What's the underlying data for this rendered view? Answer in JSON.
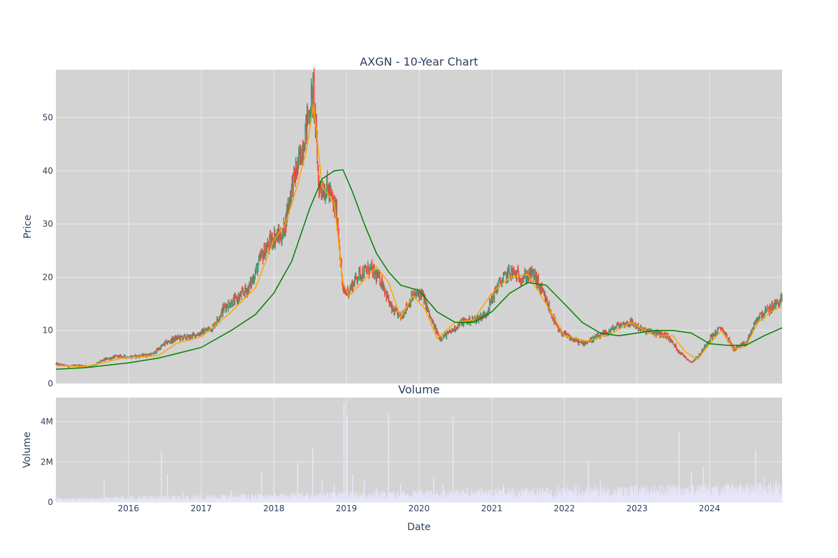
{
  "chart_data": [
    {
      "type": "line",
      "title": "AXGN - 10-Year Chart",
      "xlabel": "",
      "ylabel": "Price",
      "ylim": [
        0,
        59
      ],
      "yticks": [
        0,
        10,
        20,
        30,
        40,
        50
      ],
      "xlim": [
        "2015-01-01",
        "2024-12-31"
      ],
      "xticks": [
        "2016",
        "2017",
        "2018",
        "2019",
        "2020",
        "2021",
        "2022",
        "2023",
        "2024"
      ],
      "grid": true,
      "background": "#d3d3d3",
      "series": [
        {
          "kind": "candlestick",
          "up_color": "#3d9970",
          "down_color": "#ff4136",
          "x": [
            "2015-01-01",
            "2015-03-01",
            "2015-05-01",
            "2015-07-01",
            "2015-09-01",
            "2015-11-01",
            "2016-01-01",
            "2016-03-01",
            "2016-05-01",
            "2016-07-01",
            "2016-09-01",
            "2016-11-01",
            "2017-01-01",
            "2017-03-01",
            "2017-05-01",
            "2017-07-01",
            "2017-09-01",
            "2017-11-01",
            "2018-01-01",
            "2018-02-15",
            "2018-04-01",
            "2018-05-15",
            "2018-07-01",
            "2018-07-20",
            "2018-08-15",
            "2018-10-01",
            "2018-11-15",
            "2018-12-15",
            "2019-01-15",
            "2019-03-01",
            "2019-05-01",
            "2019-07-01",
            "2019-08-15",
            "2019-10-01",
            "2019-12-01",
            "2020-01-15",
            "2020-03-01",
            "2020-04-15",
            "2020-06-01",
            "2020-08-01",
            "2020-10-01",
            "2020-12-01",
            "2021-02-01",
            "2021-04-01",
            "2021-06-01",
            "2021-08-01",
            "2021-10-01",
            "2021-12-01",
            "2022-02-01",
            "2022-04-01",
            "2022-06-01",
            "2022-08-01",
            "2022-10-01",
            "2022-12-01",
            "2023-02-01",
            "2023-04-01",
            "2023-06-01",
            "2023-08-01",
            "2023-10-01",
            "2023-11-15",
            "2024-01-01",
            "2024-03-01",
            "2024-05-01",
            "2024-07-01",
            "2024-09-01",
            "2024-11-01",
            "2024-12-31"
          ],
          "values": [
            3.7,
            3.3,
            3.4,
            3.2,
            4.5,
            5.1,
            5.0,
            5.2,
            5.5,
            7.5,
            8.6,
            8.7,
            9.6,
            10.6,
            14.6,
            15.9,
            18.2,
            24.0,
            27.6,
            27.8,
            37.0,
            42.5,
            52.0,
            55.0,
            37.0,
            36.5,
            31.5,
            17.0,
            17.5,
            20.5,
            21.5,
            19.0,
            14.0,
            12.5,
            16.5,
            17.0,
            12.0,
            8.5,
            9.5,
            11.5,
            12.0,
            13.0,
            18.5,
            21.0,
            20.0,
            20.5,
            15.5,
            10.0,
            8.5,
            7.5,
            8.5,
            9.5,
            11.0,
            11.5,
            10.0,
            9.5,
            9.0,
            6.0,
            4.0,
            5.5,
            8.5,
            10.5,
            6.5,
            7.5,
            12.5,
            14.0,
            16.0
          ]
        },
        {
          "name": "",
          "kind": "ma-short",
          "color": "#ffa500",
          "x": [
            "2015-01-01",
            "2015-06-01",
            "2015-12-01",
            "2016-06-01",
            "2016-09-01",
            "2017-01-01",
            "2017-06-01",
            "2017-10-01",
            "2018-01-01",
            "2018-03-01",
            "2018-05-01",
            "2018-06-15",
            "2018-07-20",
            "2018-09-01",
            "2018-11-01",
            "2018-12-15",
            "2019-01-15",
            "2019-04-01",
            "2019-06-01",
            "2019-08-01",
            "2019-10-01",
            "2019-12-01",
            "2020-02-01",
            "2020-04-01",
            "2020-07-01",
            "2020-10-01",
            "2021-01-01",
            "2021-04-01",
            "2021-07-01",
            "2021-10-01",
            "2022-01-01",
            "2022-05-01",
            "2022-09-01",
            "2022-12-01",
            "2023-04-01",
            "2023-07-01",
            "2023-09-01",
            "2023-11-01",
            "2024-01-01",
            "2024-03-01",
            "2024-05-01",
            "2024-07-01",
            "2024-09-01",
            "2024-11-01",
            "2024-12-31"
          ],
          "values": [
            3.4,
            3.2,
            4.8,
            5.3,
            7.6,
            8.8,
            13.5,
            18.0,
            27.0,
            30.0,
            37.5,
            44.0,
            52.5,
            37.0,
            34.0,
            19.0,
            16.5,
            19.5,
            22.0,
            19.0,
            12.5,
            16.5,
            14.0,
            8.5,
            11.5,
            12.0,
            17.0,
            20.0,
            20.5,
            15.0,
            9.0,
            8.0,
            9.5,
            11.5,
            9.0,
            9.0,
            6.0,
            4.5,
            7.5,
            10.0,
            6.5,
            7.0,
            11.5,
            13.5,
            14.5
          ]
        },
        {
          "name": "",
          "kind": "ma-long",
          "color": "#008000",
          "x": [
            "2015-01-01",
            "2015-06-01",
            "2016-01-01",
            "2016-06-01",
            "2017-01-01",
            "2017-06-01",
            "2017-10-01",
            "2018-01-01",
            "2018-04-01",
            "2018-07-01",
            "2018-09-01",
            "2018-11-01",
            "2018-12-15",
            "2019-02-01",
            "2019-04-01",
            "2019-06-01",
            "2019-08-01",
            "2019-10-01",
            "2020-01-01",
            "2020-04-01",
            "2020-07-01",
            "2020-10-01",
            "2021-01-01",
            "2021-04-01",
            "2021-07-01",
            "2021-10-01",
            "2022-01-01",
            "2022-04-01",
            "2022-07-01",
            "2022-10-01",
            "2023-01-01",
            "2023-04-01",
            "2023-07-01",
            "2023-10-01",
            "2024-01-01",
            "2024-04-01",
            "2024-07-01",
            "2024-10-01",
            "2024-12-31"
          ],
          "values": [
            2.7,
            3.0,
            3.9,
            4.8,
            6.8,
            10.0,
            13.0,
            17.0,
            23.0,
            33.0,
            38.5,
            40.0,
            40.2,
            36.0,
            30.0,
            24.5,
            21.0,
            18.5,
            17.5,
            13.5,
            11.5,
            11.5,
            13.5,
            17.0,
            19.0,
            18.5,
            15.0,
            11.5,
            9.5,
            9.0,
            9.5,
            10.0,
            10.0,
            9.5,
            7.5,
            7.2,
            7.2,
            9.0,
            10.5
          ]
        }
      ]
    },
    {
      "type": "bar",
      "title": "Volume",
      "xlabel": "Date",
      "ylabel": "Volume",
      "ylim": [
        0,
        5200000
      ],
      "yticks": [
        0,
        2000000,
        4000000
      ],
      "ytick_labels": [
        "0",
        "2M",
        "4M"
      ],
      "xlim": [
        "2015-01-01",
        "2024-12-31"
      ],
      "xticks": [
        "2016",
        "2017",
        "2018",
        "2019",
        "2020",
        "2021",
        "2022",
        "2023",
        "2024"
      ],
      "grid": true,
      "background": "#d3d3d3",
      "color": "#e6e6fa",
      "x": [
        "2015-01-01",
        "2015-04-01",
        "2015-08-01",
        "2015-09-01",
        "2015-12-01",
        "2016-04-01",
        "2016-06-15",
        "2016-07-15",
        "2016-10-01",
        "2017-01-01",
        "2017-06-01",
        "2017-11-01",
        "2018-01-01",
        "2018-05-01",
        "2018-07-15",
        "2018-09-01",
        "2018-11-01",
        "2018-12-20",
        "2019-01-05",
        "2019-02-01",
        "2019-04-01",
        "2019-06-01",
        "2019-08-01",
        "2019-10-01",
        "2020-01-01",
        "2020-03-15",
        "2020-05-01",
        "2020-06-20",
        "2020-09-01",
        "2020-12-01",
        "2021-03-01",
        "2021-06-01",
        "2021-09-01",
        "2021-12-01",
        "2022-03-01",
        "2022-05-01",
        "2022-07-01",
        "2022-10-01",
        "2023-01-01",
        "2023-04-01",
        "2023-06-01",
        "2023-08-01",
        "2023-10-01",
        "2023-12-01",
        "2024-02-01",
        "2024-05-01",
        "2024-07-01",
        "2024-08-20",
        "2024-10-01",
        "2024-12-01"
      ],
      "values": [
        400000,
        250000,
        150000,
        1100000,
        300000,
        350000,
        2550000,
        1400000,
        500000,
        450000,
        600000,
        1500000,
        800000,
        1950000,
        2700000,
        1100000,
        900000,
        4950000,
        4300000,
        1400000,
        1100000,
        700000,
        4350000,
        900000,
        600000,
        1200000,
        900000,
        4250000,
        700000,
        600000,
        900000,
        700000,
        600000,
        850000,
        800000,
        2000000,
        1100000,
        700000,
        500000,
        400000,
        500000,
        3500000,
        1500000,
        1800000,
        800000,
        500000,
        700000,
        2600000,
        1200000,
        1100000
      ]
    }
  ]
}
